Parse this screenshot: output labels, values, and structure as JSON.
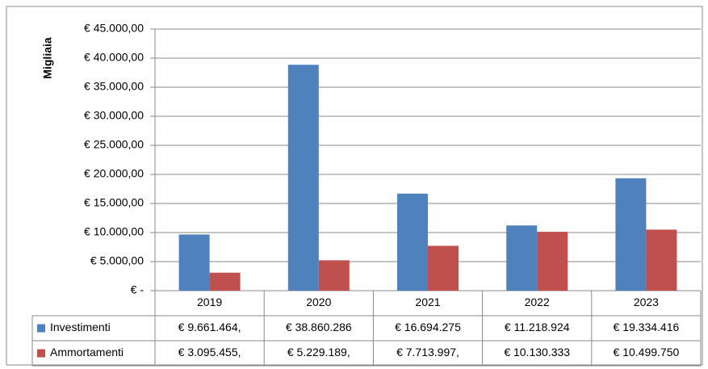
{
  "chart_data": {
    "type": "bar",
    "y_axis_label": "Migliaia",
    "categories": [
      "2019",
      "2020",
      "2021",
      "2022",
      "2023"
    ],
    "series": [
      {
        "name": "Investimenti",
        "color": "#4f81bd",
        "values": [
          9661.464,
          38860.286,
          16694.275,
          11218.924,
          19334.416
        ],
        "value_labels": [
          "€ 9.661.464,",
          "€ 38.860.286",
          "€ 16.694.275",
          "€ 11.218.924",
          "€ 19.334.416"
        ]
      },
      {
        "name": "Ammortamenti",
        "color": "#c0504d",
        "values": [
          3095.455,
          5229.189,
          7713.997,
          10130.333,
          10499.75
        ],
        "value_labels": [
          "€ 3.095.455,",
          "€ 5.229.189,",
          "€ 7.713.997,",
          "€ 10.130.333",
          "€ 10.499.750"
        ]
      }
    ],
    "ylim": [
      0,
      45000
    ],
    "yticks": [
      {
        "value": 0,
        "label": "€ -"
      },
      {
        "value": 5000,
        "label": "€ 5.000,00"
      },
      {
        "value": 10000,
        "label": "€ 10.000,00"
      },
      {
        "value": 15000,
        "label": "€ 15.000,00"
      },
      {
        "value": 20000,
        "label": "€ 20.000,00"
      },
      {
        "value": 25000,
        "label": "€ 25.000,00"
      },
      {
        "value": 30000,
        "label": "€ 30.000,00"
      },
      {
        "value": 35000,
        "label": "€ 35.000,00"
      },
      {
        "value": 40000,
        "label": "€ 40.000,00"
      },
      {
        "value": 45000,
        "label": "€ 45.000,00"
      }
    ],
    "grid": true
  }
}
